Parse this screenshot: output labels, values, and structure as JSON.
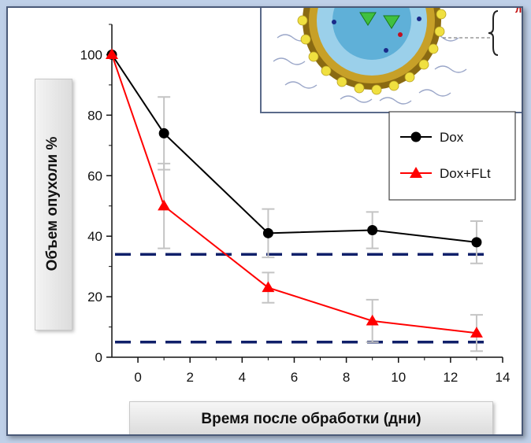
{
  "figure": {
    "inset_caption_fragment": "лл"
  },
  "chart_data": {
    "type": "line",
    "xlabel": "Время после обработки (дни)",
    "ylabel": "Объем опухоли %",
    "xlim": [
      -1,
      14
    ],
    "ylim": [
      0,
      110
    ],
    "xticks": [
      0,
      2,
      4,
      6,
      8,
      10,
      12,
      14
    ],
    "yticks": [
      0,
      20,
      40,
      60,
      80,
      100
    ],
    "legend_position": "upper-right",
    "grid": false,
    "series": [
      {
        "name": "Dox",
        "color": "#000000",
        "marker": "circle",
        "x": [
          -1,
          1,
          5,
          9,
          13
        ],
        "y": [
          100,
          74,
          41,
          42,
          38
        ],
        "err": [
          0,
          12,
          8,
          6,
          7
        ]
      },
      {
        "name": "Dox+FLt",
        "color": "#ff0000",
        "marker": "triangle",
        "x": [
          -1,
          1,
          5,
          9,
          13
        ],
        "y": [
          100,
          50,
          23,
          12,
          8
        ],
        "err": [
          0,
          14,
          5,
          7,
          6
        ]
      }
    ],
    "reference_lines": [
      {
        "y": 34,
        "style": "dashed",
        "color": "#10206a"
      },
      {
        "y": 5,
        "style": "dashed",
        "color": "#10206a"
      }
    ]
  }
}
